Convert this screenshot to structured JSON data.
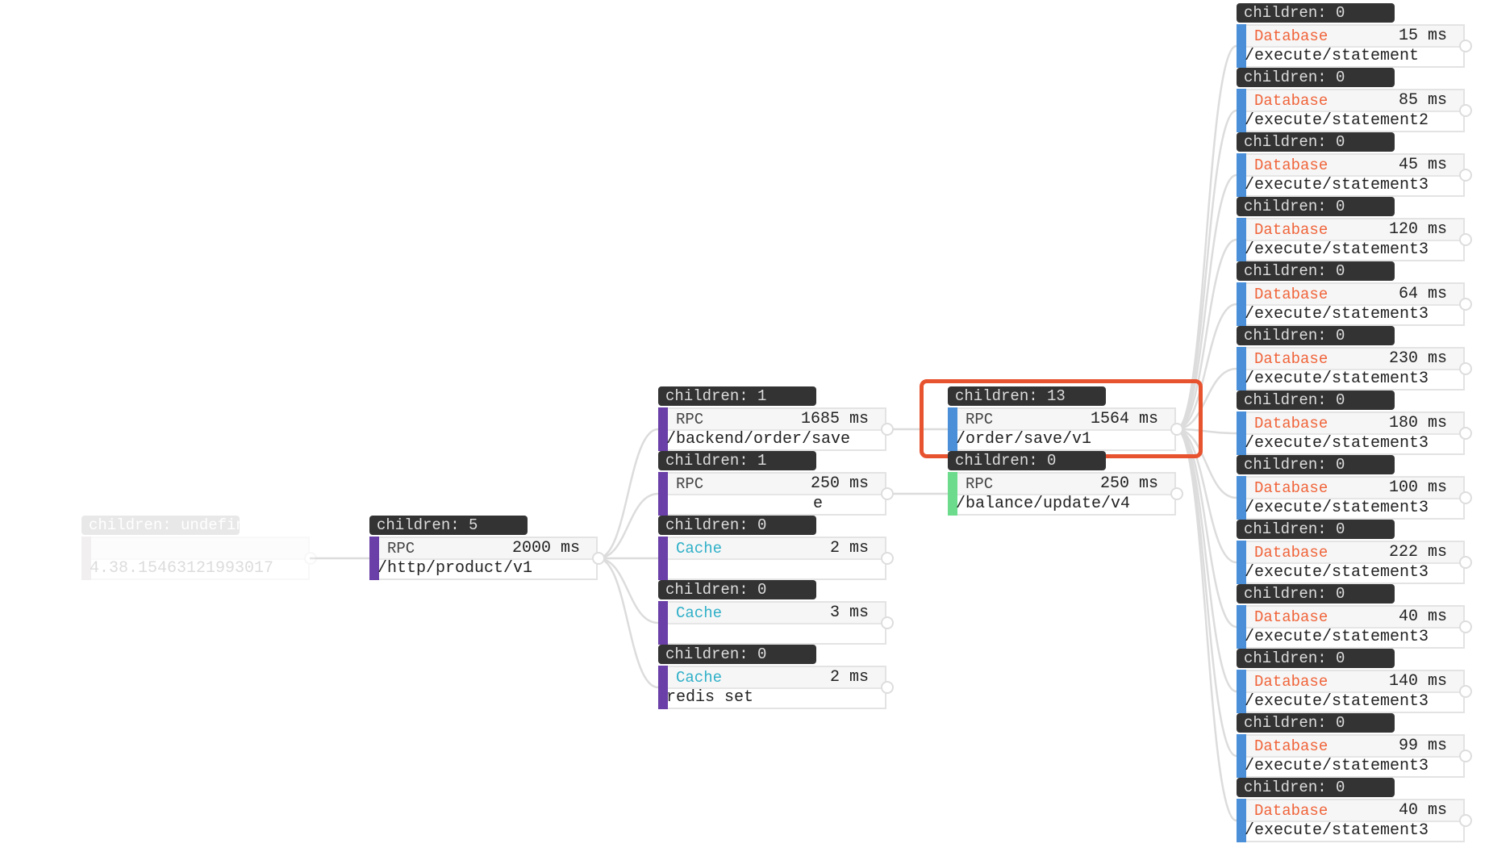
{
  "colors": {
    "rpc_root": "#6a3fa8",
    "rpc_blue": "#4a8fd8",
    "rpc_green": "#6cdc8c",
    "database_text": "#f0643a",
    "cache_text": "#2fb0c8",
    "highlight": "#e8532f",
    "root_bar": "#c8b8c0"
  },
  "nodes": [
    {
      "id": "n0",
      "children": "children: undefined",
      "type": "",
      "time": "",
      "path": "4.38.15463121993017",
      "bar": "#c8b8c0",
      "faded": true
    },
    {
      "id": "n1",
      "parent": "n0",
      "children": "children: 5",
      "type": "RPC",
      "time": "2000 ms",
      "path": "/http/product/v1",
      "bar": "#6a3fa8"
    },
    {
      "id": "n2",
      "parent": "n1",
      "children": "children: 1",
      "type": "RPC",
      "time": "1685 ms",
      "path": "/backend/order/save",
      "bar": "#6a3fa8"
    },
    {
      "id": "n3",
      "parent": "n1",
      "children": "children: 1",
      "type": "RPC",
      "time": "250 ms",
      "path": "e",
      "bar": "#6a3fa8",
      "path_offset": true
    },
    {
      "id": "n4",
      "parent": "n1",
      "children": "children: 0",
      "type": "Cache",
      "time": "2 ms",
      "path": "",
      "bar": "#6a3fa8"
    },
    {
      "id": "n5",
      "parent": "n1",
      "children": "children: 0",
      "type": "Cache",
      "time": "3 ms",
      "path": "",
      "bar": "#6a3fa8"
    },
    {
      "id": "n6",
      "parent": "n1",
      "children": "children: 0",
      "type": "Cache",
      "time": "2 ms",
      "path": "redis set",
      "bar": "#6a3fa8"
    },
    {
      "id": "n7",
      "parent": "n2",
      "children": "children: 13",
      "type": "RPC",
      "time": "1564 ms",
      "path": "/order/save/v1",
      "bar": "#4a8fd8",
      "highlighted": true
    },
    {
      "id": "n8",
      "parent": "n3",
      "children": "children: 0",
      "type": "RPC",
      "time": "250 ms",
      "path": "/balance/update/v4",
      "bar": "#6cdc8c"
    },
    {
      "id": "d0",
      "parent": "n7",
      "children": "children: 0",
      "type": "Database",
      "time": "15 ms",
      "path": "/execute/statement",
      "bar": "#4a8fd8"
    },
    {
      "id": "d1",
      "parent": "n7",
      "children": "children: 0",
      "type": "Database",
      "time": "85 ms",
      "path": "/execute/statement2",
      "bar": "#4a8fd8"
    },
    {
      "id": "d2",
      "parent": "n7",
      "children": "children: 0",
      "type": "Database",
      "time": "45 ms",
      "path": "/execute/statement3",
      "bar": "#4a8fd8"
    },
    {
      "id": "d3",
      "parent": "n7",
      "children": "children: 0",
      "type": "Database",
      "time": "120 ms",
      "path": "/execute/statement3",
      "bar": "#4a8fd8"
    },
    {
      "id": "d4",
      "parent": "n7",
      "children": "children: 0",
      "type": "Database",
      "time": "64 ms",
      "path": "/execute/statement3",
      "bar": "#4a8fd8"
    },
    {
      "id": "d5",
      "parent": "n7",
      "children": "children: 0",
      "type": "Database",
      "time": "230 ms",
      "path": "/execute/statement3",
      "bar": "#4a8fd8"
    },
    {
      "id": "d6",
      "parent": "n7",
      "children": "children: 0",
      "type": "Database",
      "time": "180 ms",
      "path": "/execute/statement3",
      "bar": "#4a8fd8"
    },
    {
      "id": "d7",
      "parent": "n7",
      "children": "children: 0",
      "type": "Database",
      "time": "100 ms",
      "path": "/execute/statement3",
      "bar": "#4a8fd8"
    },
    {
      "id": "d8",
      "parent": "n7",
      "children": "children: 0",
      "type": "Database",
      "time": "222 ms",
      "path": "/execute/statement3",
      "bar": "#4a8fd8"
    },
    {
      "id": "d9",
      "parent": "n7",
      "children": "children: 0",
      "type": "Database",
      "time": "40 ms",
      "path": "/execute/statement3",
      "bar": "#4a8fd8"
    },
    {
      "id": "d10",
      "parent": "n7",
      "children": "children: 0",
      "type": "Database",
      "time": "140 ms",
      "path": "/execute/statement3",
      "bar": "#4a8fd8"
    },
    {
      "id": "d11",
      "parent": "n7",
      "children": "children: 0",
      "type": "Database",
      "time": "99 ms",
      "path": "/execute/statement3",
      "bar": "#4a8fd8"
    },
    {
      "id": "d12",
      "parent": "n7",
      "children": "children: 0",
      "type": "Database",
      "time": "40 ms",
      "path": "/execute/statement3",
      "bar": "#4a8fd8"
    }
  ]
}
